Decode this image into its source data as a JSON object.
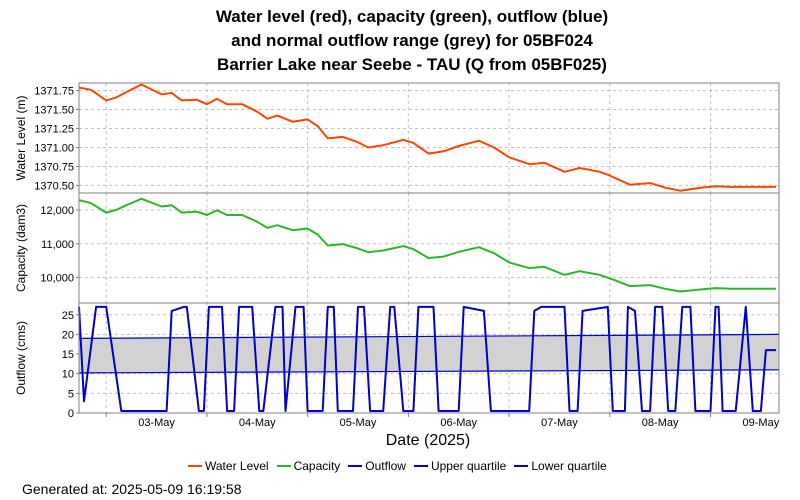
{
  "title_lines": [
    "Water level (red), capacity (green), outflow (blue)",
    "and normal outflow range (grey) for 05BF024",
    "Barrier Lake near Seebe - TAU (Q from 05BF025)"
  ],
  "generated": "Generated at: 2025-05-09 16:19:58",
  "colors": {
    "water_level": "#ff4500",
    "capacity": "#2db52d",
    "outflow": "#0000c8",
    "upper_quartile": "#0000c8",
    "lower_quartile": "#0000c8",
    "normal_range_fill": "#d2d2d2",
    "grid": "#c0c0c0"
  },
  "chart_data": {
    "type": "line",
    "xlabel": "Date (2025)",
    "x_ticks": [
      "03-May",
      "04-May",
      "05-May",
      "06-May",
      "07-May",
      "08-May",
      "09-May"
    ],
    "x_range_days": [
      2.73,
      9.68
    ],
    "legend": {
      "placement": "bottom",
      "entries": [
        "Water Level",
        "Capacity",
        "Outflow",
        "Upper quartile",
        "Lower quartile"
      ]
    },
    "panels": [
      {
        "key": "water_level",
        "ylabel": "Water Level (m)",
        "yticks": [
          1370.5,
          1370.75,
          1371.0,
          1371.25,
          1371.5,
          1371.75
        ],
        "ytick_labels": [
          "1370.50",
          "1370.75",
          "1371.00",
          "1371.25",
          "1371.50",
          "1371.75"
        ],
        "ylim": [
          1370.4,
          1371.85
        ],
        "series": [
          {
            "name": "Water Level",
            "x": [
              2.73,
              2.85,
              3.0,
              3.1,
              3.2,
              3.35,
              3.55,
              3.65,
              3.75,
              3.9,
              4.0,
              4.1,
              4.2,
              4.35,
              4.5,
              4.6,
              4.7,
              4.85,
              5.0,
              5.1,
              5.2,
              5.35,
              5.5,
              5.6,
              5.75,
              5.95,
              6.05,
              6.2,
              6.35,
              6.5,
              6.7,
              6.85,
              7.0,
              7.2,
              7.35,
              7.55,
              7.7,
              7.9,
              8.0,
              8.2,
              8.4,
              8.55,
              8.7,
              8.9,
              9.05,
              9.2,
              9.35,
              9.45,
              9.55,
              9.65
            ],
            "values": [
              1371.79,
              1371.76,
              1371.62,
              1371.66,
              1371.73,
              1371.83,
              1371.7,
              1371.72,
              1371.62,
              1371.63,
              1371.57,
              1371.64,
              1371.57,
              1371.57,
              1371.47,
              1371.38,
              1371.42,
              1371.34,
              1371.37,
              1371.28,
              1371.12,
              1371.14,
              1371.07,
              1371.0,
              1371.03,
              1371.1,
              1371.06,
              1370.92,
              1370.95,
              1371.02,
              1371.09,
              1371.0,
              1370.87,
              1370.78,
              1370.8,
              1370.68,
              1370.73,
              1370.68,
              1370.63,
              1370.51,
              1370.53,
              1370.47,
              1370.43,
              1370.47,
              1370.49,
              1370.48,
              1370.48,
              1370.48,
              1370.48,
              1370.48
            ]
          }
        ]
      },
      {
        "key": "capacity",
        "ylabel": "Capacity (dam3)",
        "yticks": [
          10000,
          11000,
          12000
        ],
        "ytick_labels": [
          "10,000",
          "11,000",
          "12,000"
        ],
        "ylim": [
          9250,
          12500
        ],
        "series": [
          {
            "name": "Capacity",
            "x": [
              2.73,
              2.85,
              3.0,
              3.1,
              3.2,
              3.35,
              3.55,
              3.65,
              3.75,
              3.9,
              4.0,
              4.1,
              4.2,
              4.35,
              4.5,
              4.6,
              4.7,
              4.85,
              5.0,
              5.1,
              5.2,
              5.35,
              5.5,
              5.6,
              5.75,
              5.95,
              6.05,
              6.2,
              6.35,
              6.5,
              6.7,
              6.85,
              7.0,
              7.2,
              7.35,
              7.55,
              7.7,
              7.9,
              8.0,
              8.2,
              8.4,
              8.55,
              8.7,
              8.9,
              9.05,
              9.2,
              9.35,
              9.45,
              9.55,
              9.65
            ],
            "values": [
              12290,
              12200,
              11920,
              12000,
              12140,
              12330,
              12100,
              12140,
              11920,
              11950,
              11850,
              11990,
              11850,
              11850,
              11650,
              11470,
              11550,
              11400,
              11450,
              11270,
              10950,
              10990,
              10860,
              10750,
              10800,
              10930,
              10840,
              10580,
              10620,
              10760,
              10900,
              10720,
              10450,
              10280,
              10320,
              10080,
              10190,
              10080,
              9980,
              9750,
              9780,
              9670,
              9590,
              9650,
              9690,
              9670,
              9670,
              9670,
              9670,
              9670
            ]
          }
        ]
      },
      {
        "key": "outflow",
        "ylabel": "Outflow (cms)",
        "yticks": [
          0,
          5,
          10,
          15,
          20,
          25
        ],
        "ytick_labels": [
          "0",
          "5",
          "10",
          "15",
          "20",
          "25"
        ],
        "ylim": [
          0,
          28
        ],
        "series": [
          {
            "name": "Outflow",
            "x": [
              2.73,
              2.78,
              2.9,
              3.0,
              3.15,
              3.23,
              3.25,
              3.6,
              3.65,
              3.77,
              3.8,
              3.92,
              3.97,
              4.02,
              4.15,
              4.2,
              4.27,
              4.32,
              4.45,
              4.52,
              4.56,
              4.68,
              4.75,
              4.78,
              4.88,
              4.96,
              5.0,
              5.15,
              5.2,
              5.26,
              5.3,
              5.45,
              5.5,
              5.56,
              5.62,
              5.75,
              5.82,
              5.86,
              5.95,
              6.05,
              6.1,
              6.25,
              6.3,
              6.4,
              6.5,
              6.55,
              6.75,
              6.82,
              6.9,
              6.93,
              7.0,
              7.2,
              7.25,
              7.32,
              7.4,
              7.55,
              7.6,
              7.68,
              7.73,
              7.98,
              8.03,
              8.15,
              8.18,
              8.25,
              8.32,
              8.4,
              8.45,
              8.52,
              8.58,
              8.65,
              8.72,
              8.8,
              8.85,
              9.0,
              9.05,
              9.08,
              9.12,
              9.25,
              9.35,
              9.42,
              9.5,
              9.55,
              9.65
            ],
            "values": [
              27,
              3,
              27,
              27,
              0.5,
              0.5,
              0.5,
              0.5,
              26,
              27,
              27,
              0.5,
              0.5,
              27,
              27,
              0.5,
              0.5,
              27,
              27,
              0.5,
              0.5,
              27,
              27,
              0.5,
              27,
              27,
              0.5,
              0.5,
              27,
              27,
              0.5,
              0.5,
              27,
              27,
              0.5,
              0.5,
              27,
              27,
              0.5,
              0.5,
              27,
              27,
              0.5,
              0.5,
              0.5,
              27,
              26,
              0.5,
              0.5,
              0.5,
              0.5,
              0.5,
              26,
              27,
              27,
              27,
              0.5,
              0.5,
              26,
              27,
              0.5,
              0.5,
              27,
              26,
              0.5,
              0.5,
              27,
              27,
              0.5,
              0.5,
              27,
              27,
              0.5,
              0.5,
              27,
              27,
              0.5,
              0.5,
              27,
              0.5,
              0.5,
              16,
              16
            ]
          },
          {
            "name": "Upper quartile",
            "x": [
              2.73,
              9.68
            ],
            "values": [
              19,
              20
            ]
          },
          {
            "name": "Lower quartile",
            "x": [
              2.73,
              9.68
            ],
            "values": [
              10.2,
              11
            ]
          }
        ]
      }
    ]
  }
}
